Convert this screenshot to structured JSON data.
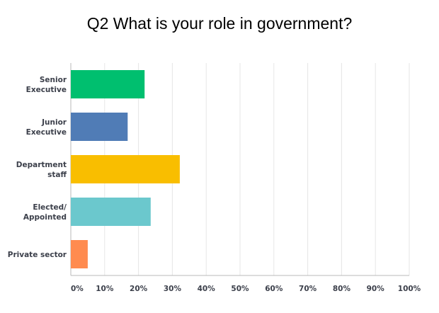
{
  "chart_data": {
    "type": "bar",
    "orientation": "horizontal",
    "title": "Q2 What is your role in government?",
    "categories": [
      [
        "Senior",
        "Executive"
      ],
      [
        "Junior",
        "Executive"
      ],
      [
        "Department",
        "staff"
      ],
      [
        "Elected/",
        "Appointed"
      ],
      [
        "Private sector"
      ]
    ],
    "values": [
      21.8,
      16.8,
      32.2,
      23.6,
      5.0
    ],
    "colors": [
      "#00bf6f",
      "#507cb6",
      "#f9be00",
      "#6bc8cd",
      "#ff8b4f"
    ],
    "xlim": [
      0,
      100
    ],
    "ticks": [
      "0%",
      "10%",
      "20%",
      "30%",
      "40%",
      "50%",
      "60%",
      "70%",
      "80%",
      "90%",
      "100%"
    ],
    "tick_values": [
      0,
      10,
      20,
      30,
      40,
      50,
      60,
      70,
      80,
      90,
      100
    ],
    "grid": true
  }
}
